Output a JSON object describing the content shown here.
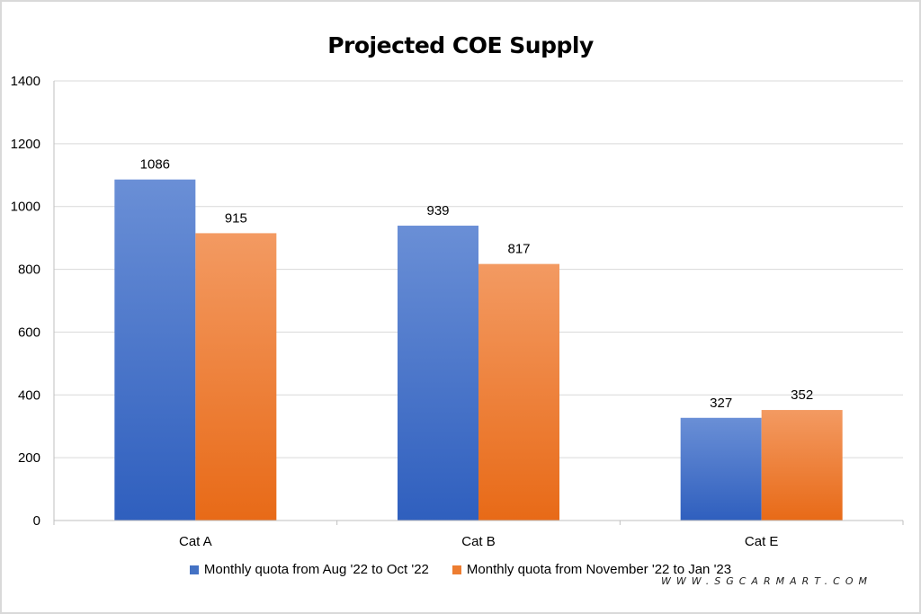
{
  "chart_data": {
    "type": "bar",
    "title": "Projected COE Supply",
    "categories": [
      "Cat A",
      "Cat B",
      "Cat E"
    ],
    "series": [
      {
        "name": "Monthly quota from Aug '22 to Oct '22",
        "values": [
          1086,
          939,
          327
        ],
        "color": "#4472c4"
      },
      {
        "name": "Monthly quota from November '22 to Jan '23",
        "values": [
          915,
          817,
          352
        ],
        "color": "#ed7d31"
      }
    ],
    "ylim": [
      0,
      1400
    ],
    "yticks": [
      0,
      200,
      400,
      600,
      800,
      1000,
      1200,
      1400
    ],
    "grid": true,
    "legend": "bottom",
    "data_labels": true
  },
  "watermark": "WWW.SGCARMART.COM"
}
